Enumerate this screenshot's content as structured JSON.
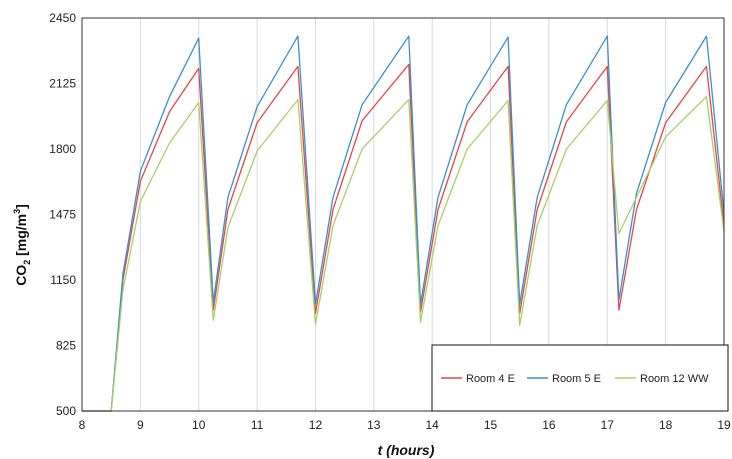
{
  "chart_data": {
    "type": "line",
    "title": "",
    "xlabel": "t (hours)",
    "ylabel": {
      "pre": "CO",
      "sub": "2",
      "mid": " [mg/m",
      "sup": "3",
      "post": "]"
    },
    "xlim": [
      8,
      19
    ],
    "ylim": [
      500,
      2450
    ],
    "xticks": [
      "8",
      "9",
      "10",
      "11",
      "12",
      "13",
      "14",
      "15",
      "16",
      "17",
      "18",
      "19"
    ],
    "yticks": [
      "500",
      "825",
      "1150",
      "1475",
      "1800",
      "2125",
      "2450"
    ],
    "grid": "vertical",
    "legend_position": "bottom-right",
    "series": [
      {
        "name": "Room 4 E",
        "color": "#e04848",
        "points": [
          [
            8.0,
            500
          ],
          [
            8.5,
            500
          ],
          [
            8.7,
            1150
          ],
          [
            9.0,
            1640
          ],
          [
            9.5,
            1985
          ],
          [
            10.0,
            2200
          ],
          [
            10.25,
            1000
          ],
          [
            10.5,
            1500
          ],
          [
            11.0,
            1930
          ],
          [
            11.7,
            2210
          ],
          [
            12.0,
            985
          ],
          [
            12.3,
            1500
          ],
          [
            12.8,
            1940
          ],
          [
            13.6,
            2220
          ],
          [
            13.8,
            990
          ],
          [
            14.1,
            1500
          ],
          [
            14.6,
            1935
          ],
          [
            15.3,
            2210
          ],
          [
            15.5,
            985
          ],
          [
            15.8,
            1500
          ],
          [
            16.3,
            1935
          ],
          [
            17.0,
            2210
          ],
          [
            17.2,
            1000
          ],
          [
            17.5,
            1500
          ],
          [
            18.0,
            1930
          ],
          [
            18.7,
            2210
          ],
          [
            19.0,
            1420
          ]
        ]
      },
      {
        "name": "Room 5 E",
        "color": "#3d8fcc",
        "points": [
          [
            8.0,
            500
          ],
          [
            8.5,
            500
          ],
          [
            8.7,
            1180
          ],
          [
            9.0,
            1690
          ],
          [
            9.5,
            2060
          ],
          [
            10.0,
            2350
          ],
          [
            10.25,
            1040
          ],
          [
            10.5,
            1560
          ],
          [
            11.0,
            2010
          ],
          [
            11.7,
            2360
          ],
          [
            12.0,
            1030
          ],
          [
            12.3,
            1560
          ],
          [
            12.8,
            2020
          ],
          [
            13.6,
            2360
          ],
          [
            13.8,
            1030
          ],
          [
            14.1,
            1560
          ],
          [
            14.6,
            2020
          ],
          [
            15.3,
            2355
          ],
          [
            15.5,
            1030
          ],
          [
            15.8,
            1560
          ],
          [
            16.3,
            2020
          ],
          [
            17.0,
            2360
          ],
          [
            17.2,
            1050
          ],
          [
            17.5,
            1580
          ],
          [
            18.0,
            2030
          ],
          [
            18.7,
            2360
          ],
          [
            19.0,
            1480
          ]
        ]
      },
      {
        "name": "Room 12 WW",
        "color": "#a8cf6a",
        "points": [
          [
            8.0,
            500
          ],
          [
            8.5,
            500
          ],
          [
            8.7,
            1100
          ],
          [
            9.0,
            1540
          ],
          [
            9.5,
            1830
          ],
          [
            10.0,
            2030
          ],
          [
            10.25,
            950
          ],
          [
            10.5,
            1410
          ],
          [
            11.0,
            1790
          ],
          [
            11.7,
            2045
          ],
          [
            12.0,
            930
          ],
          [
            12.3,
            1420
          ],
          [
            12.8,
            1800
          ],
          [
            13.6,
            2045
          ],
          [
            13.8,
            940
          ],
          [
            14.1,
            1420
          ],
          [
            14.6,
            1800
          ],
          [
            15.3,
            2040
          ],
          [
            15.5,
            925
          ],
          [
            15.8,
            1420
          ],
          [
            16.3,
            1800
          ],
          [
            17.0,
            2040
          ],
          [
            17.2,
            1380
          ],
          [
            17.5,
            1560
          ],
          [
            18.0,
            1860
          ],
          [
            18.7,
            2060
          ],
          [
            19.0,
            1390
          ]
        ]
      }
    ]
  }
}
